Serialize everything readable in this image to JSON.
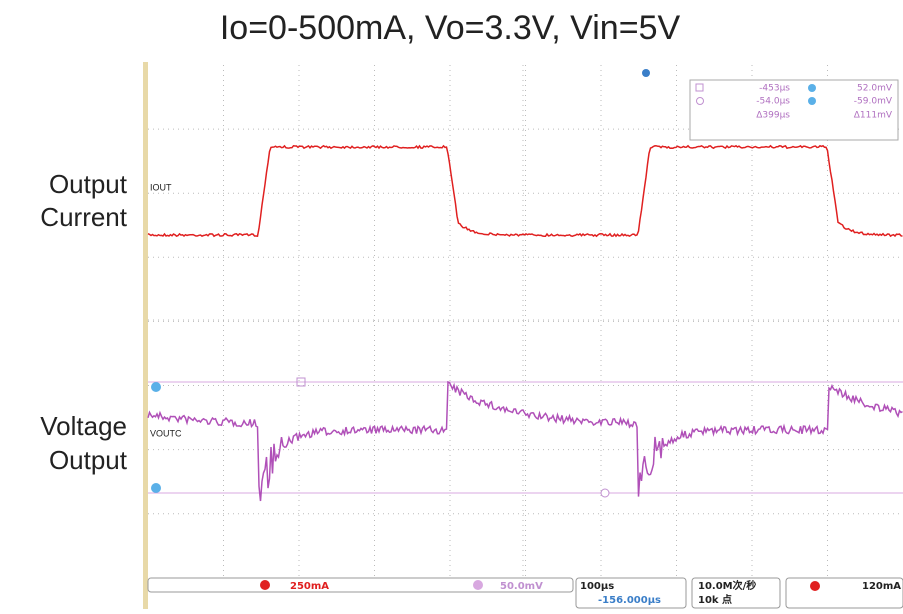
{
  "title": "Io=0-500mA, Vo=3.3V, Vin=5V",
  "side_labels": {
    "current": [
      "Output",
      "Current"
    ],
    "voltage": [
      "Voltage",
      "Output"
    ]
  },
  "channel_labels": {
    "ch1": "IOUT",
    "ch2": "VOUTC"
  },
  "cursor_readout": {
    "t_a": "-453µs",
    "v_a": "52.0mV",
    "t_b": "-54.0µs",
    "v_b": "-59.0mV",
    "dt": "Δ399µs",
    "dv": "Δ111mV"
  },
  "status_bar": {
    "ch2_scale": "250mA",
    "ch_math_scale": "50.0mV",
    "timebase": "100µs",
    "offset": "-156.000µs",
    "sample_rate": "10.0M次/秒",
    "points": "10k 点",
    "trigger_level": "120mA"
  }
}
